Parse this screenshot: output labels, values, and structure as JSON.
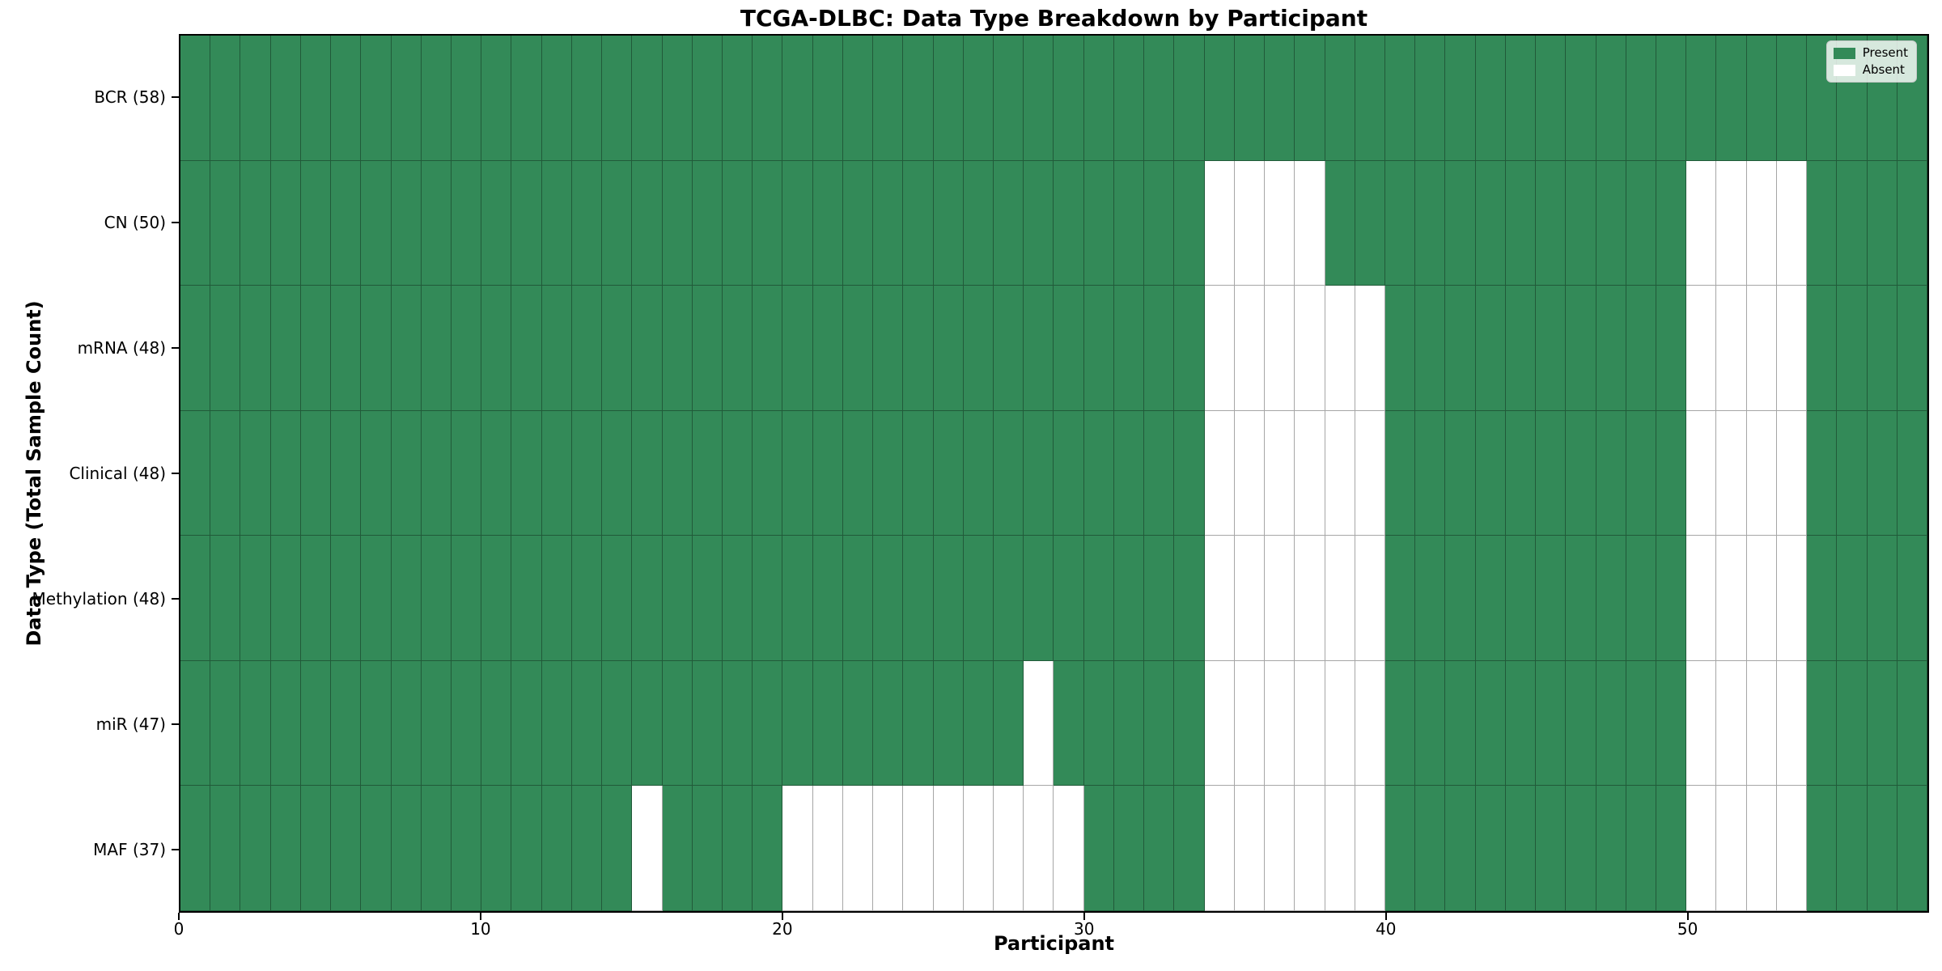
{
  "chart_data": {
    "type": "heatmap",
    "title": "TCGA-DLBC: Data Type Breakdown by Participant",
    "xlabel": "Participant",
    "ylabel": "Data Type (Total Sample Count)",
    "n_participants": 58,
    "xlim": [
      0,
      58
    ],
    "x_ticks": [
      0,
      10,
      20,
      30,
      40,
      50
    ],
    "categories": [
      "BCR (58)",
      "CN (50)",
      "mRNA (48)",
      "Clinical (48)",
      "Methylation (48)",
      "miR (47)",
      "MAF (37)"
    ],
    "rows": [
      {
        "label": "BCR (58)",
        "data_type": "BCR",
        "total": 58,
        "absent_participants": []
      },
      {
        "label": "CN (50)",
        "data_type": "CN",
        "total": 50,
        "absent_participants": [
          34,
          35,
          36,
          37,
          50,
          51,
          52,
          53
        ]
      },
      {
        "label": "mRNA (48)",
        "data_type": "mRNA",
        "total": 48,
        "absent_participants": [
          34,
          35,
          36,
          37,
          38,
          39,
          50,
          51,
          52,
          53
        ]
      },
      {
        "label": "Clinical (48)",
        "data_type": "Clinical",
        "total": 48,
        "absent_participants": [
          34,
          35,
          36,
          37,
          38,
          39,
          50,
          51,
          52,
          53
        ]
      },
      {
        "label": "Methylation (48)",
        "data_type": "Methylation",
        "total": 48,
        "absent_participants": [
          34,
          35,
          36,
          37,
          38,
          39,
          50,
          51,
          52,
          53
        ]
      },
      {
        "label": "miR (47)",
        "data_type": "miR",
        "total": 47,
        "absent_participants": [
          28,
          34,
          35,
          36,
          37,
          38,
          39,
          50,
          51,
          52,
          53
        ]
      },
      {
        "label": "MAF (37)",
        "data_type": "MAF",
        "total": 37,
        "absent_participants": [
          15,
          20,
          21,
          22,
          23,
          24,
          25,
          26,
          27,
          28,
          29,
          34,
          35,
          36,
          37,
          38,
          39,
          50,
          51,
          52,
          53
        ]
      }
    ],
    "legend": {
      "position": "upper right",
      "items": [
        {
          "label": "Present",
          "color": "#338A58"
        },
        {
          "label": "Absent",
          "color": "#ffffff"
        }
      ]
    },
    "colors": {
      "present": "#338A58",
      "absent": "#ffffff"
    },
    "grid": true
  }
}
